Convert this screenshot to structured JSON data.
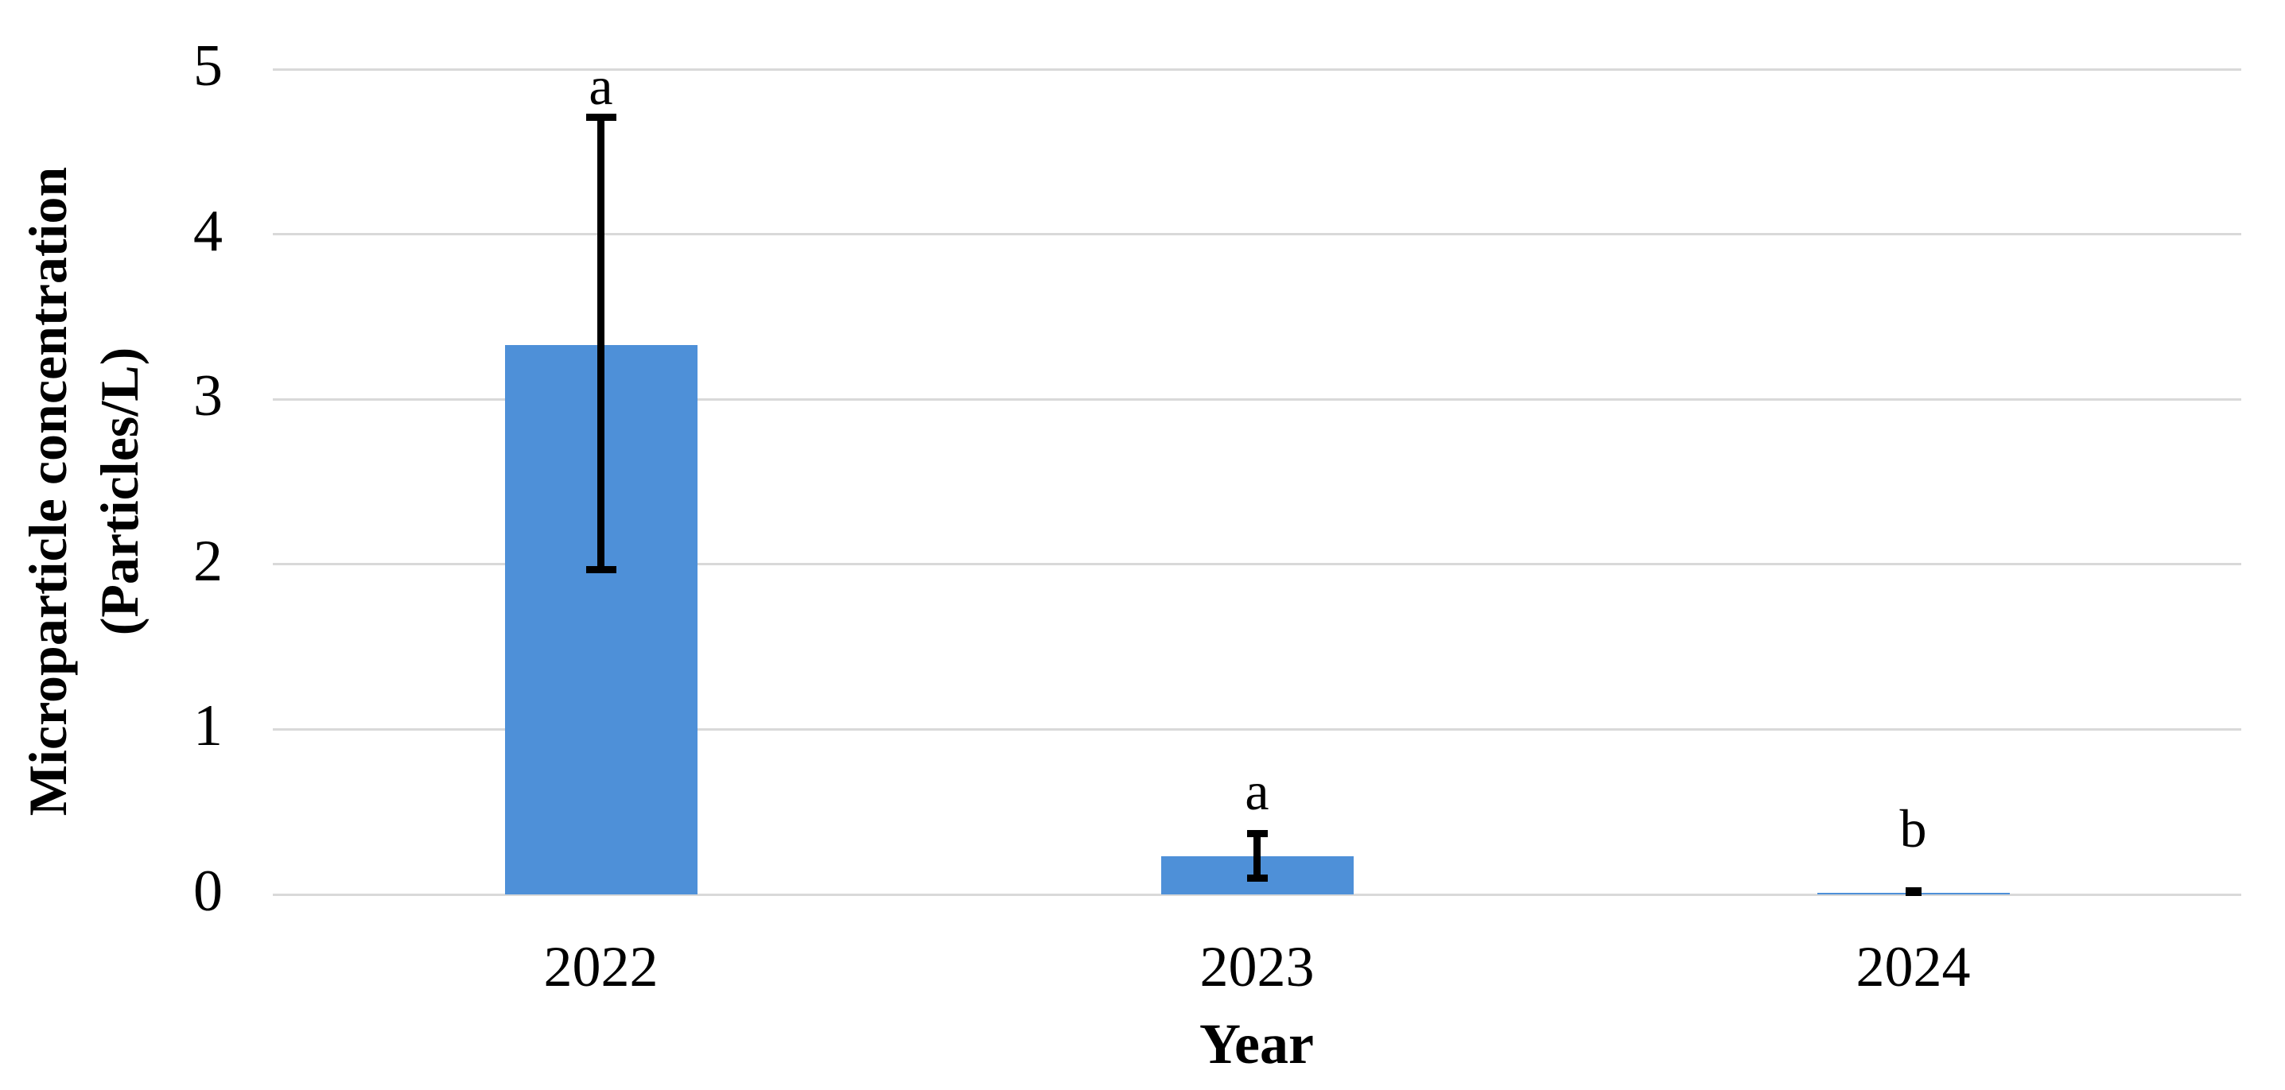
{
  "chart_data": {
    "type": "bar",
    "title": "",
    "xlabel": "Year",
    "ylabel_lines": [
      "Microparticle concentration",
      "(Particles/L)"
    ],
    "categories": [
      "2022",
      "2023",
      "2024"
    ],
    "values": [
      3.33,
      0.23,
      0.01
    ],
    "error_low": [
      1.97,
      0.1,
      0.01
    ],
    "error_high": [
      4.71,
      0.37,
      0.02
    ],
    "sig_letters": [
      "a",
      "a",
      "b"
    ],
    "y_ticks": [
      0,
      1,
      2,
      3,
      4,
      5
    ],
    "ylim": [
      0,
      5
    ],
    "grid": true,
    "legend_position": "none",
    "bar_color": "#4E90D8",
    "gridline_color": "#D9D9D9",
    "error_bar_color": "#000000",
    "text_color": "#000000",
    "background_color": "#FFFFFF"
  }
}
